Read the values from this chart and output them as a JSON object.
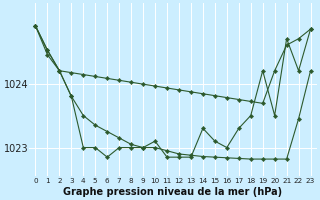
{
  "title": "Graphe pression niveau de la mer (hPa)",
  "bg_color": "#cceeff",
  "grid_color": "#ffffff",
  "line_color": "#2d5a2d",
  "x_labels": [
    "0",
    "1",
    "2",
    "3",
    "4",
    "5",
    "6",
    "7",
    "8",
    "9",
    "10",
    "11",
    "12",
    "13",
    "14",
    "15",
    "16",
    "17",
    "18",
    "19",
    "20",
    "21",
    "22",
    "23"
  ],
  "x_values": [
    0,
    1,
    2,
    3,
    4,
    5,
    6,
    7,
    8,
    9,
    10,
    11,
    12,
    13,
    14,
    15,
    16,
    17,
    18,
    19,
    20,
    21,
    22,
    23
  ],
  "series_main": [
    1024.9,
    1024.45,
    1024.2,
    1023.8,
    1023.0,
    1023.0,
    1022.85,
    1023.0,
    1023.0,
    1023.0,
    1023.1,
    1022.85,
    1022.85,
    1022.85,
    1023.3,
    1023.1,
    1023.0,
    1023.3,
    1023.5,
    1024.2,
    1023.5,
    1024.7,
    1024.2,
    1024.85
  ],
  "series_upper": [
    1024.9,
    1024.52,
    1024.2,
    1024.17,
    1024.14,
    1024.11,
    1024.08,
    1024.05,
    1024.02,
    1023.99,
    1023.96,
    1023.93,
    1023.9,
    1023.87,
    1023.84,
    1023.81,
    1023.78,
    1023.75,
    1023.72,
    1023.69,
    1024.2,
    1024.6,
    1024.7,
    1024.85
  ],
  "series_lower": [
    1024.9,
    1024.52,
    1024.2,
    1023.8,
    1023.5,
    1023.35,
    1023.25,
    1023.15,
    1023.05,
    1023.0,
    1023.0,
    1022.95,
    1022.9,
    1022.88,
    1022.86,
    1022.85,
    1022.84,
    1022.83,
    1022.82,
    1022.82,
    1022.82,
    1022.82,
    1023.45,
    1024.2
  ],
  "ylim": [
    1022.55,
    1025.25
  ],
  "yticks": [
    1023.0,
    1024.0
  ],
  "ylabel_fontsize": 7,
  "xlabel_fontsize": 5.2,
  "title_fontsize": 7,
  "marker_size": 2.2,
  "line_width": 0.8
}
